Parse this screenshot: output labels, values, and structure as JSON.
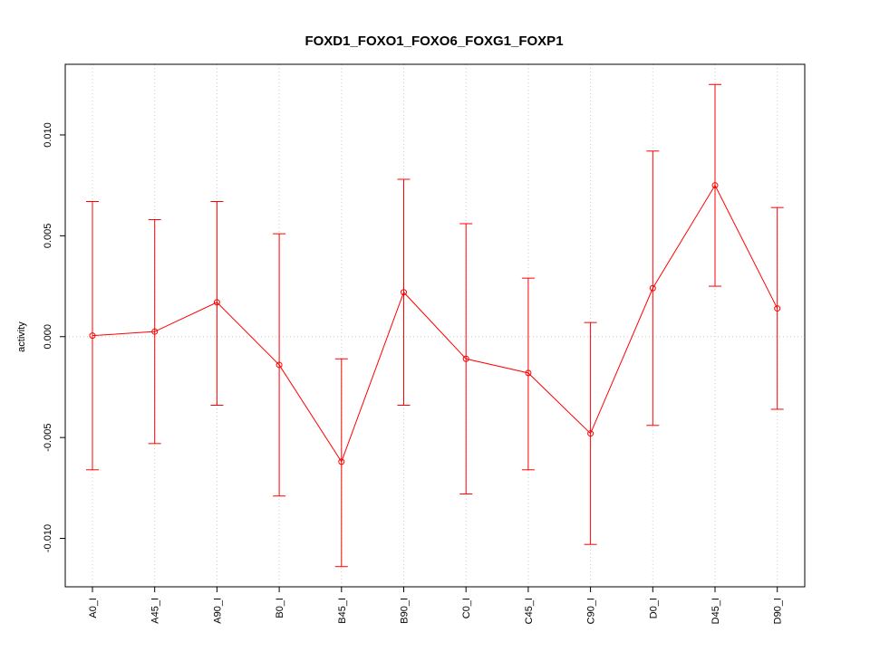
{
  "chart_data": {
    "type": "line",
    "title": "FOXD1_FOXO1_FOXO6_FOXG1_FOXP1",
    "xlabel": "",
    "ylabel": "activity",
    "categories": [
      "A0_I",
      "A45_I",
      "A90_I",
      "B0_I",
      "B45_I",
      "B90_I",
      "C0_I",
      "C45_I",
      "C90_I",
      "D0_I",
      "D45_I",
      "D90_I"
    ],
    "series": [
      {
        "values": [
          5e-05,
          0.00025,
          0.0017,
          -0.0014,
          -0.0062,
          0.0022,
          -0.0011,
          -0.0018,
          -0.0048,
          0.0024,
          0.0075,
          0.0014
        ],
        "upper": [
          0.0067,
          0.0058,
          0.0067,
          0.0051,
          -0.0011,
          0.0078,
          0.0056,
          0.0029,
          0.0007,
          0.0092,
          0.0125,
          0.0064
        ],
        "lower": [
          -0.0066,
          -0.0053,
          -0.0034,
          -0.0079,
          -0.0114,
          -0.0034,
          -0.0078,
          -0.0066,
          -0.0103,
          -0.0044,
          0.0025,
          -0.0036
        ],
        "color": "#ff0000"
      }
    ],
    "yticks": [
      -0.01,
      -0.005,
      0.0,
      0.005,
      0.01
    ],
    "ytick_labels": [
      "-0.010",
      "-0.005",
      "0.000",
      "0.005",
      "0.010"
    ],
    "ylim": [
      -0.0124,
      0.0135
    ],
    "grid": true,
    "reference_line": 0
  }
}
